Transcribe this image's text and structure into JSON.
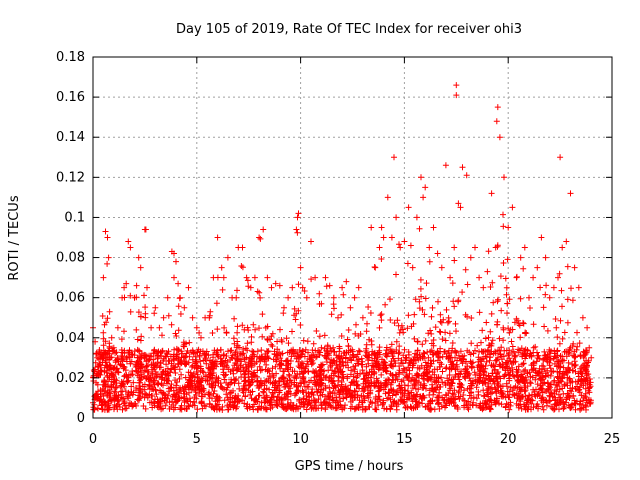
{
  "chart_data": {
    "type": "scatter",
    "title": "Day 105 of 2019, Rate Of TEC Index for receiver ohi3",
    "xlabel": "GPS time / hours",
    "ylabel": "ROTI / TECUs",
    "xlim": [
      0,
      25
    ],
    "ylim": [
      0,
      0.18
    ],
    "x_ticks": [
      "0",
      "5",
      "10",
      "15",
      "20",
      "25"
    ],
    "y_ticks": [
      "0",
      "0.02",
      "0.04",
      "0.06",
      "0.08",
      "0.1",
      "0.12",
      "0.14",
      "0.16",
      "0.18"
    ],
    "grid": true,
    "marker": "+",
    "color": "#ff0000",
    "series": [
      {
        "x": [
          0.0,
          0.1,
          0.2,
          0.3,
          0.5,
          0.6,
          0.7,
          0.75,
          0.8,
          0.9,
          1.0,
          1.2,
          1.4,
          1.5,
          1.6,
          1.7,
          1.8,
          2.0,
          2.1,
          2.2,
          2.3,
          2.5,
          2.55,
          2.6,
          2.8,
          3.0,
          3.2,
          3.4,
          3.6,
          3.8,
          3.9,
          4.0,
          4.1,
          4.2,
          4.4,
          4.6,
          4.8,
          5.0,
          5.2,
          5.4,
          5.6,
          5.8,
          6.0,
          6.2,
          6.3,
          6.5,
          6.7,
          6.9,
          7.0,
          7.2,
          7.4,
          7.6,
          7.8,
          8.0,
          8.2,
          8.4,
          8.6,
          8.8,
          9.0,
          9.2,
          9.4,
          9.6,
          9.8,
          9.85,
          9.9,
          10.0,
          10.1,
          10.3,
          10.5,
          10.7,
          10.9,
          11.0,
          11.2,
          11.4,
          11.6,
          11.8,
          12.0,
          12.2,
          12.4,
          12.6,
          12.8,
          13.0,
          13.2,
          13.4,
          13.6,
          13.8,
          13.9,
          14.0,
          14.2,
          14.4,
          14.5,
          14.6,
          14.8,
          15.0,
          15.2,
          15.4,
          15.6,
          15.8,
          15.9,
          16.0,
          16.2,
          16.4,
          16.6,
          16.8,
          17.0,
          17.2,
          17.4,
          17.6,
          17.7,
          17.8,
          18.0,
          18.2,
          18.4,
          18.6,
          18.8,
          19.0,
          19.2,
          19.4,
          19.45,
          19.5,
          19.6,
          19.8,
          20.0,
          20.2,
          20.4,
          20.6,
          20.8,
          21.0,
          21.2,
          21.4,
          21.6,
          21.8,
          22.0,
          22.2,
          22.4,
          22.5,
          22.6,
          22.8,
          23.0,
          23.2,
          23.4,
          23.6,
          23.8,
          23.9,
          24.0
        ],
        "y": [
          0.045,
          0.038,
          0.03,
          0.033,
          0.07,
          0.093,
          0.09,
          0.08,
          0.053,
          0.04,
          0.035,
          0.045,
          0.06,
          0.065,
          0.067,
          0.088,
          0.085,
          0.06,
          0.066,
          0.08,
          0.075,
          0.094,
          0.094,
          0.065,
          0.045,
          0.055,
          0.045,
          0.05,
          0.06,
          0.083,
          0.082,
          0.078,
          0.067,
          0.06,
          0.055,
          0.065,
          0.05,
          0.045,
          0.04,
          0.05,
          0.05,
          0.07,
          0.09,
          0.075,
          0.07,
          0.08,
          0.06,
          0.06,
          0.085,
          0.085,
          0.07,
          0.065,
          0.07,
          0.09,
          0.094,
          0.07,
          0.065,
          0.067,
          0.066,
          0.055,
          0.06,
          0.065,
          0.094,
          0.1,
          0.102,
          0.075,
          0.065,
          0.06,
          0.088,
          0.07,
          0.062,
          0.057,
          0.07,
          0.066,
          0.06,
          0.05,
          0.065,
          0.068,
          0.055,
          0.06,
          0.065,
          0.05,
          0.047,
          0.095,
          0.075,
          0.085,
          0.095,
          0.09,
          0.11,
          0.09,
          0.13,
          0.1,
          0.085,
          0.088,
          0.105,
          0.075,
          0.1,
          0.12,
          0.11,
          0.115,
          0.085,
          0.095,
          0.082,
          0.075,
          0.126,
          0.07,
          0.085,
          0.107,
          0.105,
          0.125,
          0.121,
          0.08,
          0.085,
          0.07,
          0.065,
          0.073,
          0.112,
          0.085,
          0.148,
          0.155,
          0.14,
          0.12,
          0.095,
          0.105,
          0.07,
          0.08,
          0.085,
          0.06,
          0.07,
          0.075,
          0.09,
          0.08,
          0.06,
          0.065,
          0.07,
          0.13,
          0.085,
          0.088,
          0.112,
          0.075,
          0.065,
          0.05,
          0.045,
          0.035,
          0.03
        ]
      }
    ],
    "peaks": [
      {
        "x": 17.5,
        "y": 0.166
      },
      {
        "x": 17.5,
        "y": 0.161
      }
    ]
  }
}
